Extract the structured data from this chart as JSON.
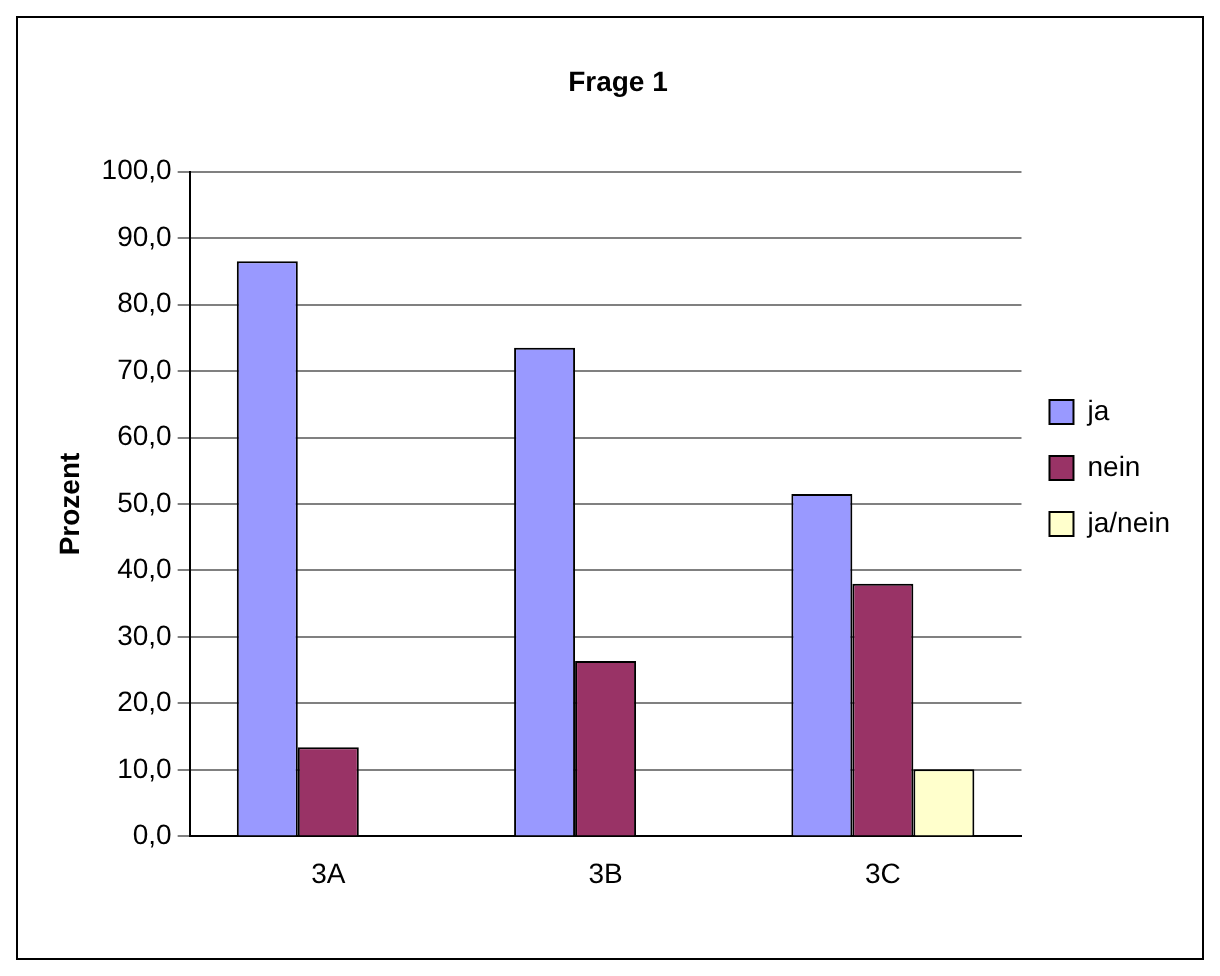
{
  "chart_data": {
    "type": "bar",
    "title": "Frage 1",
    "ylabel": "Prozent",
    "categories": [
      "3A",
      "3B",
      "3C"
    ],
    "series": [
      {
        "name": "ja",
        "color": "#9999ff",
        "values": [
          86.5,
          73.5,
          51.5
        ]
      },
      {
        "name": "nein",
        "color": "#993366",
        "values": [
          13.4,
          26.4,
          38.0
        ]
      },
      {
        "name": "ja/nein",
        "color": "#ffffcc",
        "values": [
          null,
          null,
          10.1
        ]
      }
    ],
    "ylim": [
      0,
      100
    ],
    "yticks": [
      {
        "value": 0,
        "label": "0,0"
      },
      {
        "value": 10,
        "label": "10,0"
      },
      {
        "value": 20,
        "label": "20,0"
      },
      {
        "value": 30,
        "label": "30,0"
      },
      {
        "value": 40,
        "label": "40,0"
      },
      {
        "value": 50,
        "label": "50,0"
      },
      {
        "value": 60,
        "label": "60,0"
      },
      {
        "value": 70,
        "label": "70,0"
      },
      {
        "value": 80,
        "label": "80,0"
      },
      {
        "value": 90,
        "label": "90,0"
      },
      {
        "value": 100,
        "label": "100,0"
      }
    ],
    "grid": "y",
    "legend": "right"
  }
}
